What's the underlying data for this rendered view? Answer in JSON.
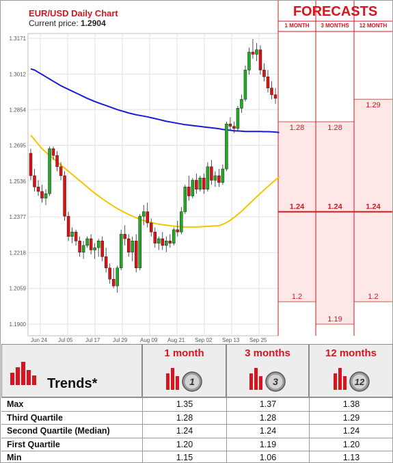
{
  "chart": {
    "title": "EUR/USD Daily Chart",
    "current_price_label": "Current price:",
    "current_price": "1.2904"
  },
  "forecasts": {
    "title": "FORECASTS",
    "columns": [
      "1 MONTH",
      "3 MONTHS",
      "12 MONTH"
    ]
  },
  "colors": {
    "accent_red": "#d9141e",
    "bull_candle": "#22aa22",
    "bear_candle": "#dd1111",
    "ma_blue": "#1a1ad6",
    "ma_yellow": "#f7c400",
    "forecast_fill": "#fde7e7"
  },
  "chart_data": {
    "type": "candlestick",
    "title": "EUR/USD Daily Chart",
    "x_tick_labels": [
      "Jun 24",
      "Jul 05",
      "Jul 17",
      "Jul 29",
      "Aug 09",
      "Aug 21",
      "Sep 02",
      "Sep 13",
      "Sep 25"
    ],
    "y_tick_labels": [
      "1.3171",
      "1.3012",
      "1.2854",
      "1.2695",
      "1.2536",
      "1.2377",
      "1.2218",
      "1.2059",
      "1.1900"
    ],
    "ylim": [
      1.19,
      1.3171
    ],
    "candles": [
      {
        "o": 1.266,
        "h": 1.268,
        "l": 1.254,
        "c": 1.256
      },
      {
        "o": 1.256,
        "h": 1.259,
        "l": 1.249,
        "c": 1.251
      },
      {
        "o": 1.251,
        "h": 1.254,
        "l": 1.247,
        "c": 1.249
      },
      {
        "o": 1.249,
        "h": 1.252,
        "l": 1.244,
        "c": 1.246
      },
      {
        "o": 1.246,
        "h": 1.25,
        "l": 1.243,
        "c": 1.248
      },
      {
        "o": 1.248,
        "h": 1.269,
        "l": 1.247,
        "c": 1.268
      },
      {
        "o": 1.268,
        "h": 1.269,
        "l": 1.263,
        "c": 1.265
      },
      {
        "o": 1.265,
        "h": 1.267,
        "l": 1.258,
        "c": 1.26
      },
      {
        "o": 1.26,
        "h": 1.262,
        "l": 1.254,
        "c": 1.256
      },
      {
        "o": 1.256,
        "h": 1.258,
        "l": 1.236,
        "c": 1.238
      },
      {
        "o": 1.238,
        "h": 1.24,
        "l": 1.227,
        "c": 1.229
      },
      {
        "o": 1.229,
        "h": 1.233,
        "l": 1.226,
        "c": 1.231
      },
      {
        "o": 1.231,
        "h": 1.232,
        "l": 1.225,
        "c": 1.227
      },
      {
        "o": 1.227,
        "h": 1.229,
        "l": 1.22,
        "c": 1.222
      },
      {
        "o": 1.222,
        "h": 1.227,
        "l": 1.219,
        "c": 1.225
      },
      {
        "o": 1.225,
        "h": 1.229,
        "l": 1.224,
        "c": 1.228
      },
      {
        "o": 1.228,
        "h": 1.23,
        "l": 1.221,
        "c": 1.223
      },
      {
        "o": 1.223,
        "h": 1.226,
        "l": 1.219,
        "c": 1.224
      },
      {
        "o": 1.224,
        "h": 1.228,
        "l": 1.22,
        "c": 1.227
      },
      {
        "o": 1.227,
        "h": 1.229,
        "l": 1.218,
        "c": 1.22
      },
      {
        "o": 1.22,
        "h": 1.224,
        "l": 1.213,
        "c": 1.215
      },
      {
        "o": 1.215,
        "h": 1.217,
        "l": 1.208,
        "c": 1.21
      },
      {
        "o": 1.21,
        "h": 1.215,
        "l": 1.206,
        "c": 1.207
      },
      {
        "o": 1.207,
        "h": 1.216,
        "l": 1.204,
        "c": 1.215
      },
      {
        "o": 1.215,
        "h": 1.232,
        "l": 1.214,
        "c": 1.23
      },
      {
        "o": 1.23,
        "h": 1.234,
        "l": 1.225,
        "c": 1.228
      },
      {
        "o": 1.228,
        "h": 1.23,
        "l": 1.22,
        "c": 1.222
      },
      {
        "o": 1.222,
        "h": 1.229,
        "l": 1.218,
        "c": 1.227
      },
      {
        "o": 1.227,
        "h": 1.23,
        "l": 1.213,
        "c": 1.215
      },
      {
        "o": 1.215,
        "h": 1.239,
        "l": 1.214,
        "c": 1.238
      },
      {
        "o": 1.238,
        "h": 1.243,
        "l": 1.234,
        "c": 1.24
      },
      {
        "o": 1.24,
        "h": 1.244,
        "l": 1.233,
        "c": 1.235
      },
      {
        "o": 1.235,
        "h": 1.237,
        "l": 1.229,
        "c": 1.231
      },
      {
        "o": 1.231,
        "h": 1.233,
        "l": 1.224,
        "c": 1.226
      },
      {
        "o": 1.226,
        "h": 1.229,
        "l": 1.223,
        "c": 1.228
      },
      {
        "o": 1.228,
        "h": 1.231,
        "l": 1.223,
        "c": 1.225
      },
      {
        "o": 1.225,
        "h": 1.229,
        "l": 1.222,
        "c": 1.227
      },
      {
        "o": 1.227,
        "h": 1.23,
        "l": 1.224,
        "c": 1.226
      },
      {
        "o": 1.226,
        "h": 1.233,
        "l": 1.225,
        "c": 1.232
      },
      {
        "o": 1.232,
        "h": 1.236,
        "l": 1.229,
        "c": 1.231
      },
      {
        "o": 1.231,
        "h": 1.242,
        "l": 1.23,
        "c": 1.24
      },
      {
        "o": 1.24,
        "h": 1.252,
        "l": 1.239,
        "c": 1.251
      },
      {
        "o": 1.251,
        "h": 1.256,
        "l": 1.245,
        "c": 1.247
      },
      {
        "o": 1.247,
        "h": 1.255,
        "l": 1.246,
        "c": 1.254
      },
      {
        "o": 1.254,
        "h": 1.257,
        "l": 1.248,
        "c": 1.25
      },
      {
        "o": 1.25,
        "h": 1.256,
        "l": 1.249,
        "c": 1.255
      },
      {
        "o": 1.255,
        "h": 1.257,
        "l": 1.248,
        "c": 1.25
      },
      {
        "o": 1.25,
        "h": 1.262,
        "l": 1.249,
        "c": 1.26
      },
      {
        "o": 1.26,
        "h": 1.263,
        "l": 1.252,
        "c": 1.254
      },
      {
        "o": 1.254,
        "h": 1.258,
        "l": 1.251,
        "c": 1.256
      },
      {
        "o": 1.256,
        "h": 1.259,
        "l": 1.251,
        "c": 1.253
      },
      {
        "o": 1.253,
        "h": 1.261,
        "l": 1.252,
        "c": 1.259
      },
      {
        "o": 1.259,
        "h": 1.28,
        "l": 1.258,
        "c": 1.279
      },
      {
        "o": 1.279,
        "h": 1.282,
        "l": 1.276,
        "c": 1.278
      },
      {
        "o": 1.278,
        "h": 1.28,
        "l": 1.275,
        "c": 1.277
      },
      {
        "o": 1.277,
        "h": 1.287,
        "l": 1.276,
        "c": 1.286
      },
      {
        "o": 1.286,
        "h": 1.292,
        "l": 1.284,
        "c": 1.29
      },
      {
        "o": 1.29,
        "h": 1.305,
        "l": 1.289,
        "c": 1.303
      },
      {
        "o": 1.303,
        "h": 1.313,
        "l": 1.301,
        "c": 1.311
      },
      {
        "o": 1.311,
        "h": 1.3168,
        "l": 1.308,
        "c": 1.31
      },
      {
        "o": 1.31,
        "h": 1.315,
        "l": 1.307,
        "c": 1.312
      },
      {
        "o": 1.312,
        "h": 1.314,
        "l": 1.301,
        "c": 1.303
      },
      {
        "o": 1.303,
        "h": 1.306,
        "l": 1.298,
        "c": 1.3
      },
      {
        "o": 1.3,
        "h": 1.303,
        "l": 1.293,
        "c": 1.295
      },
      {
        "o": 1.295,
        "h": 1.298,
        "l": 1.29,
        "c": 1.292
      },
      {
        "o": 1.292,
        "h": 1.295,
        "l": 1.288,
        "c": 1.2904
      }
    ],
    "series": [
      {
        "values": [
          1.3035,
          1.303,
          1.302,
          1.301,
          1.3,
          1.299,
          1.298,
          1.297,
          1.296,
          1.2952,
          1.2944,
          1.2936,
          1.2928,
          1.292,
          1.2912,
          1.2904,
          1.2897,
          1.289,
          1.2884,
          1.2878,
          1.2872,
          1.2866,
          1.286,
          1.2854,
          1.2849,
          1.2844,
          1.2839,
          1.2835,
          1.2831,
          1.2828,
          1.2825,
          1.2822,
          1.2818,
          1.2814,
          1.281,
          1.2806,
          1.2802,
          1.2799,
          1.2796,
          1.2793,
          1.279,
          1.2787,
          1.2785,
          1.2783,
          1.2781,
          1.2779,
          1.2777,
          1.2775,
          1.2773,
          1.2771,
          1.2769,
          1.2766,
          1.2764,
          1.2762,
          1.276,
          1.2759,
          1.2758,
          1.2757,
          1.2757,
          1.2757,
          1.2757,
          1.2757,
          1.2756,
          1.2756,
          1.2755,
          1.2754,
          1.2752
        ]
      },
      {
        "values": [
          1.274,
          1.272,
          1.27,
          1.268,
          1.2665,
          1.265,
          1.2636,
          1.2622,
          1.2608,
          1.2594,
          1.258,
          1.2566,
          1.2552,
          1.2538,
          1.2524,
          1.251,
          1.2496,
          1.2482,
          1.247,
          1.2458,
          1.2446,
          1.2435,
          1.2424,
          1.2414,
          1.2405,
          1.2396,
          1.2388,
          1.238,
          1.2373,
          1.2367,
          1.2361,
          1.2356,
          1.2352,
          1.2348,
          1.2345,
          1.2342,
          1.234,
          1.2338,
          1.2336,
          1.2334,
          1.2333,
          1.2332,
          1.2332,
          1.2332,
          1.2332,
          1.2333,
          1.2334,
          1.2335,
          1.2336,
          1.2337,
          1.2338,
          1.2344,
          1.2352,
          1.2362,
          1.2374,
          1.2388,
          1.2402,
          1.2418,
          1.2434,
          1.245,
          1.2466,
          1.2482,
          1.2497,
          1.2512,
          1.2527,
          1.2541,
          1.2555
        ]
      }
    ],
    "forecasts": {
      "columns": [
        "1 MONTH",
        "3 MONTHS",
        "12 MONTH"
      ],
      "third_quartile": [
        1.28,
        1.28,
        1.29
      ],
      "median": [
        1.24,
        1.24,
        1.24
      ],
      "first_quartile": [
        1.2,
        1.19,
        1.2
      ],
      "labels_q3": [
        "1.28",
        "1.28",
        "1.29"
      ],
      "labels_median": [
        "1.24",
        "1.24",
        "1.24"
      ],
      "labels_q1": [
        "1.2",
        "1.19",
        "1.2"
      ]
    }
  },
  "trends": {
    "title": "Trends*",
    "columns": [
      {
        "label": "1 month",
        "badge": "1"
      },
      {
        "label": "3 months",
        "badge": "3"
      },
      {
        "label": "12 months",
        "badge": "12"
      }
    ],
    "rows": [
      {
        "label": "Max",
        "values": [
          "1.35",
          "1.37",
          "1.38"
        ]
      },
      {
        "label": "Third Quartile",
        "values": [
          "1.28",
          "1.28",
          "1.29"
        ]
      },
      {
        "label": "Second Quartile (Median)",
        "values": [
          "1.24",
          "1.24",
          "1.24"
        ]
      },
      {
        "label": "First Quartile",
        "values": [
          "1.20",
          "1.19",
          "1.20"
        ]
      },
      {
        "label": "Min",
        "values": [
          "1.15",
          "1.06",
          "1.13"
        ]
      }
    ]
  }
}
